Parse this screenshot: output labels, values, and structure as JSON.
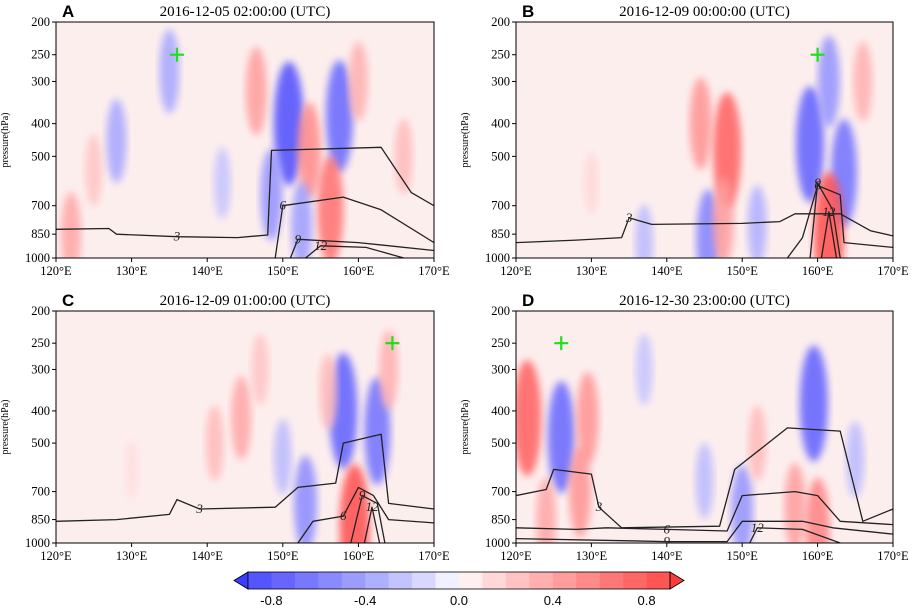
{
  "colorbar": {
    "ticks": [
      "-0.8",
      "-0.4",
      "0.0",
      "0.4",
      "0.8"
    ],
    "levels": [
      -1.0,
      -0.9,
      -0.8,
      -0.7,
      -0.6,
      -0.5,
      -0.4,
      -0.3,
      -0.2,
      -0.1,
      0.0,
      0.1,
      0.2,
      0.3,
      0.4,
      0.5,
      0.6,
      0.7,
      0.8,
      0.9,
      1.0
    ],
    "negative_color": "#2b2bff",
    "positive_color": "#ff2b2b",
    "zero_color": "#ffffff"
  },
  "marker_color": "#22dd22",
  "contour_color": "#222222",
  "chart_data": [
    {
      "type": "heatmap",
      "panel_label": "A",
      "title": "2016-12-05 02:00:00 (UTC)",
      "ylabel": "pressure(hPa)",
      "x_ticks": [
        "120°E",
        "130°E",
        "140°E",
        "150°E",
        "160°E",
        "170°E"
      ],
      "y_ticks": [
        "200",
        "250",
        "300",
        "400",
        "500",
        "700",
        "850",
        "1000"
      ],
      "xlim": [
        120,
        170
      ],
      "ylim": [
        1000,
        200
      ],
      "marker": {
        "lon": 136,
        "p": 250
      },
      "anomalies": [
        {
          "lon": 150.8,
          "p": 400,
          "v": -0.9
        },
        {
          "lon": 157.5,
          "p": 380,
          "v": -0.75
        },
        {
          "lon": 153.5,
          "p": 480,
          "v": 0.55
        },
        {
          "lon": 146.5,
          "p": 320,
          "v": 0.45
        },
        {
          "lon": 156.3,
          "p": 720,
          "v": 0.7
        },
        {
          "lon": 148.5,
          "p": 650,
          "v": -0.5
        },
        {
          "lon": 152.5,
          "p": 800,
          "v": -0.45
        },
        {
          "lon": 128,
          "p": 450,
          "v": -0.4
        },
        {
          "lon": 125,
          "p": 550,
          "v": 0.25
        },
        {
          "lon": 122,
          "p": 850,
          "v": 0.4
        },
        {
          "lon": 166,
          "p": 500,
          "v": 0.3
        },
        {
          "lon": 135,
          "p": 280,
          "v": -0.4
        },
        {
          "lon": 160,
          "p": 300,
          "v": 0.35
        },
        {
          "lon": 142,
          "p": 600,
          "v": -0.25
        }
      ],
      "contours": [
        {
          "label": "3",
          "points": [
            [
              120,
              822
            ],
            [
              127,
              818
            ],
            [
              128,
              850
            ],
            [
              136,
              865
            ],
            [
              144,
              870
            ],
            [
              148,
              855
            ],
            [
              148.5,
              480
            ],
            [
              163,
              470
            ],
            [
              167,
              640
            ],
            [
              170,
              700
            ]
          ]
        },
        {
          "label": "6",
          "points": [
            [
              149,
              1000
            ],
            [
              150,
              700
            ],
            [
              158,
              660
            ],
            [
              163,
              720
            ],
            [
              170,
              900
            ]
          ]
        },
        {
          "label": "9",
          "points": [
            [
              151,
              1000
            ],
            [
              152,
              880
            ],
            [
              160,
              900
            ],
            [
              170,
              950
            ]
          ]
        },
        {
          "label": "12",
          "points": [
            [
              153,
              1000
            ],
            [
              155,
              920
            ],
            [
              161,
              930
            ],
            [
              166,
              1000
            ]
          ]
        }
      ]
    },
    {
      "type": "heatmap",
      "panel_label": "B",
      "title": "2016-12-09 00:00:00 (UTC)",
      "ylabel": "pressure(hPa)",
      "x_ticks": [
        "120°E",
        "130°E",
        "140°E",
        "150°E",
        "160°E",
        "170°E"
      ],
      "y_ticks": [
        "200",
        "250",
        "300",
        "400",
        "500",
        "700",
        "850",
        "1000"
      ],
      "xlim": [
        120,
        170
      ],
      "ylim": [
        1000,
        200
      ],
      "marker": {
        "lon": 160,
        "p": 250
      },
      "anomalies": [
        {
          "lon": 148,
          "p": 480,
          "v": 0.8
        },
        {
          "lon": 144.5,
          "p": 400,
          "v": 0.5
        },
        {
          "lon": 159,
          "p": 460,
          "v": -0.8
        },
        {
          "lon": 163.5,
          "p": 560,
          "v": -0.7
        },
        {
          "lon": 161.5,
          "p": 300,
          "v": -0.5
        },
        {
          "lon": 161.5,
          "p": 850,
          "v": 0.9
        },
        {
          "lon": 145.5,
          "p": 880,
          "v": -0.6
        },
        {
          "lon": 147.5,
          "p": 780,
          "v": 0.45
        },
        {
          "lon": 152,
          "p": 800,
          "v": -0.35
        },
        {
          "lon": 166,
          "p": 300,
          "v": 0.35
        },
        {
          "lon": 130,
          "p": 600,
          "v": 0.15
        },
        {
          "lon": 137,
          "p": 900,
          "v": -0.3
        }
      ],
      "contours": [
        {
          "label": "3",
          "points": [
            [
              120,
              900
            ],
            [
              128,
              885
            ],
            [
              134,
              870
            ],
            [
              135,
              760
            ],
            [
              138,
              795
            ],
            [
              150,
              790
            ],
            [
              155,
              780
            ],
            [
              157,
              740
            ],
            [
              163,
              740
            ],
            [
              167,
              830
            ],
            [
              170,
              860
            ]
          ]
        },
        {
          "label": "6",
          "points": [
            [
              156,
              1000
            ],
            [
              158,
              870
            ],
            [
              160,
              610
            ],
            [
              163,
              650
            ],
            [
              163.5,
              900
            ],
            [
              170,
              930
            ]
          ]
        },
        {
          "label": "9",
          "points": [
            [
              159,
              1000
            ],
            [
              160,
              600
            ],
            [
              162,
              720
            ],
            [
              163,
              1000
            ]
          ]
        },
        {
          "label": "12",
          "points": [
            [
              160.5,
              1000
            ],
            [
              161.5,
              730
            ],
            [
              162.5,
              1000
            ]
          ]
        }
      ]
    },
    {
      "type": "heatmap",
      "panel_label": "C",
      "title": "2016-12-09 01:00:00 (UTC)",
      "ylabel": "pressure(hPa)",
      "x_ticks": [
        "120°E",
        "130°E",
        "140°E",
        "150°E",
        "160°E",
        "170°E"
      ],
      "y_ticks": [
        "200",
        "250",
        "300",
        "400",
        "500",
        "700",
        "850",
        "1000"
      ],
      "xlim": [
        120,
        170
      ],
      "ylim": [
        1000,
        200
      ],
      "marker": {
        "lon": 164.5,
        "p": 250
      },
      "anomalies": [
        {
          "lon": 158,
          "p": 400,
          "v": -0.8
        },
        {
          "lon": 162.5,
          "p": 460,
          "v": -0.7
        },
        {
          "lon": 153,
          "p": 760,
          "v": -0.55
        },
        {
          "lon": 144.5,
          "p": 420,
          "v": 0.4
        },
        {
          "lon": 141,
          "p": 500,
          "v": 0.3
        },
        {
          "lon": 159.5,
          "p": 890,
          "v": 0.9
        },
        {
          "lon": 150,
          "p": 550,
          "v": -0.3
        },
        {
          "lon": 164,
          "p": 300,
          "v": 0.35
        },
        {
          "lon": 147,
          "p": 300,
          "v": 0.25
        },
        {
          "lon": 130,
          "p": 600,
          "v": 0.12
        },
        {
          "lon": 156,
          "p": 350,
          "v": 0.3
        }
      ],
      "contours": [
        {
          "label": "3",
          "points": [
            [
              120,
              860
            ],
            [
              128,
              850
            ],
            [
              135,
              820
            ],
            [
              136,
              740
            ],
            [
              139,
              790
            ],
            [
              149,
              780
            ],
            [
              152,
              680
            ],
            [
              157,
              660
            ],
            [
              158,
              500
            ],
            [
              163,
              470
            ],
            [
              164,
              760
            ],
            [
              170,
              790
            ]
          ]
        },
        {
          "label": "6",
          "points": [
            [
              152,
              1000
            ],
            [
              154,
              860
            ],
            [
              158,
              830
            ],
            [
              160,
              680
            ],
            [
              162,
              720
            ],
            [
              164,
              850
            ],
            [
              170,
              870
            ]
          ]
        },
        {
          "label": "9",
          "points": [
            [
              159,
              1000
            ],
            [
              160.5,
              720
            ],
            [
              162.5,
              760
            ],
            [
              163.5,
              1000
            ]
          ]
        },
        {
          "label": "12",
          "points": [
            [
              160.8,
              1000
            ],
            [
              161.8,
              780
            ],
            [
              162.8,
              1000
            ]
          ]
        }
      ]
    },
    {
      "type": "heatmap",
      "panel_label": "D",
      "title": "2016-12-30 23:00:00 (UTC)",
      "ylabel": "pressure(hPa)",
      "x_ticks": [
        "120°E",
        "130°E",
        "140°E",
        "150°E",
        "160°E",
        "170°E"
      ],
      "y_ticks": [
        "200",
        "250",
        "300",
        "400",
        "500",
        "700",
        "850",
        "1000"
      ],
      "xlim": [
        120,
        170
      ],
      "ylim": [
        1000,
        200
      ],
      "marker": {
        "lon": 126,
        "p": 250
      },
      "anomalies": [
        {
          "lon": 121.5,
          "p": 420,
          "v": 0.8
        },
        {
          "lon": 126,
          "p": 480,
          "v": -0.75
        },
        {
          "lon": 129.5,
          "p": 420,
          "v": 0.5
        },
        {
          "lon": 159.5,
          "p": 380,
          "v": -0.8
        },
        {
          "lon": 150,
          "p": 800,
          "v": -0.5
        },
        {
          "lon": 157,
          "p": 780,
          "v": 0.45
        },
        {
          "lon": 160,
          "p": 900,
          "v": 0.6
        },
        {
          "lon": 128.5,
          "p": 700,
          "v": 0.5
        },
        {
          "lon": 124,
          "p": 850,
          "v": 0.4
        },
        {
          "lon": 145,
          "p": 650,
          "v": -0.3
        },
        {
          "lon": 152,
          "p": 500,
          "v": 0.3
        },
        {
          "lon": 137,
          "p": 300,
          "v": -0.25
        },
        {
          "lon": 165,
          "p": 560,
          "v": -0.3
        }
      ],
      "contours": [
        {
          "label": "3",
          "points": [
            [
              120,
              720
            ],
            [
              124,
              690
            ],
            [
              125,
              600
            ],
            [
              130,
              620
            ],
            [
              131,
              780
            ],
            [
              134,
              900
            ],
            [
              147,
              890
            ],
            [
              149,
              600
            ],
            [
              156,
              450
            ],
            [
              163,
              460
            ],
            [
              166,
              860
            ],
            [
              170,
              790
            ]
          ]
        },
        {
          "label": "6",
          "points": [
            [
              120,
              900
            ],
            [
              128,
              910
            ],
            [
              132,
              900
            ],
            [
              140,
              910
            ],
            [
              148,
              920
            ],
            [
              150,
              720
            ],
            [
              157,
              700
            ],
            [
              160,
              720
            ],
            [
              163,
              860
            ],
            [
              170,
              880
            ]
          ]
        },
        {
          "label": "9",
          "points": [
            [
              120,
              970
            ],
            [
              135,
              985
            ],
            [
              140,
              990
            ],
            [
              148,
              990
            ],
            [
              150,
              860
            ],
            [
              158,
              860
            ],
            [
              162,
              900
            ],
            [
              170,
              940
            ]
          ]
        },
        {
          "label": "12",
          "points": [
            [
              151,
              1000
            ],
            [
              152,
              900
            ],
            [
              158,
              910
            ],
            [
              163,
              1000
            ]
          ]
        }
      ]
    }
  ]
}
